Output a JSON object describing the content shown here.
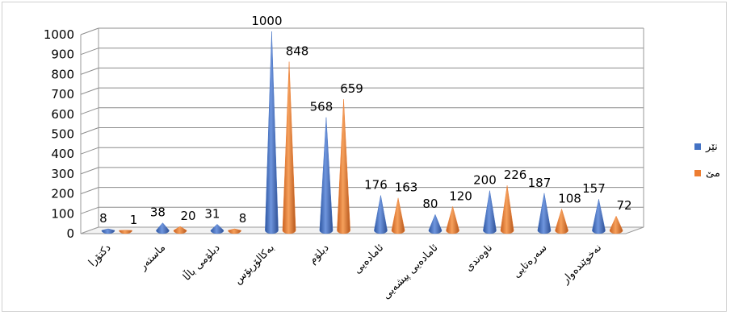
{
  "chart_data": {
    "type": "bar",
    "style": "3d-cone",
    "categories": [
      "دکتۆرا",
      "ماستەر",
      "دبلۆمی باڵا",
      "بەکالۆریۆس",
      "دبلۆم",
      "ئامادەیی",
      "ئامادەیی پیشەیی",
      "ناوەندی",
      "سەرەتایی",
      "نەخوێندەوار"
    ],
    "series": [
      {
        "name": "نێر",
        "color": "#4472c4",
        "values": [
          8,
          38,
          31,
          1000,
          568,
          176,
          80,
          200,
          187,
          157
        ]
      },
      {
        "name": "مێ",
        "color": "#ed7d31",
        "values": [
          1,
          20,
          8,
          848,
          659,
          163,
          120,
          226,
          108,
          72
        ]
      }
    ],
    "ylim": [
      0,
      1000
    ],
    "yticks": [
      0,
      100,
      200,
      300,
      400,
      500,
      600,
      700,
      800,
      900,
      1000
    ],
    "grid": true,
    "legend_position": "right"
  }
}
